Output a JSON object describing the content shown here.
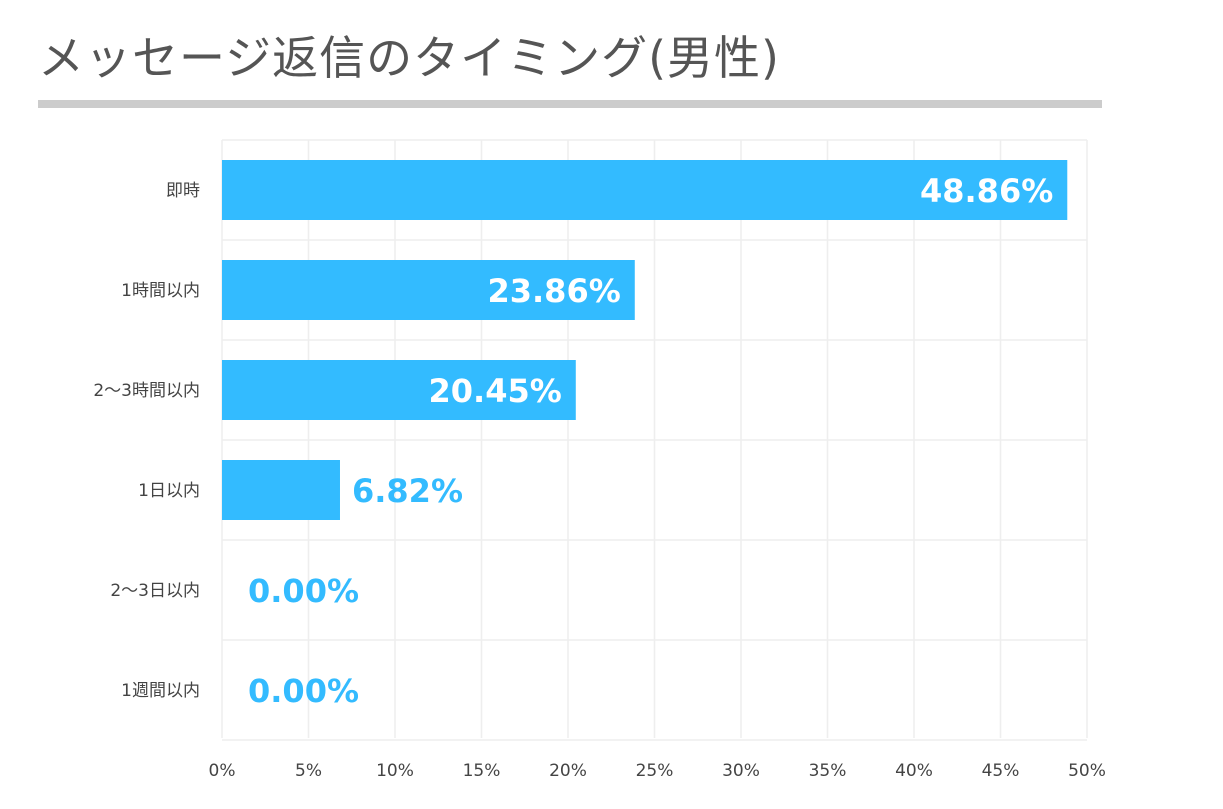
{
  "title": "メッセージ返信のタイミング(男性)",
  "colors": {
    "bar": "#33bbff",
    "value_inside": "#ffffff",
    "value_outside": "#33bbff",
    "grid": "#eeeeee",
    "title_rule": "#cccccc"
  },
  "chart_data": {
    "type": "bar",
    "orientation": "horizontal",
    "title": "メッセージ返信のタイミング(男性)",
    "categories": [
      "即時",
      "1時間以内",
      "2〜3時間以内",
      "1日以内",
      "2〜3日以内",
      "1週間以内"
    ],
    "values": [
      48.86,
      23.86,
      20.45,
      6.82,
      0.0,
      0.0
    ],
    "value_labels": [
      "48.86%",
      "23.86%",
      "20.45%",
      "6.82%",
      "0.00%",
      "0.00%"
    ],
    "x_ticks": [
      "0%",
      "5%",
      "10%",
      "15%",
      "20%",
      "25%",
      "30%",
      "35%",
      "40%",
      "45%",
      "50%"
    ],
    "xlim": [
      0,
      50
    ],
    "xlabel": "",
    "ylabel": "",
    "grid": true,
    "legend": "none"
  }
}
